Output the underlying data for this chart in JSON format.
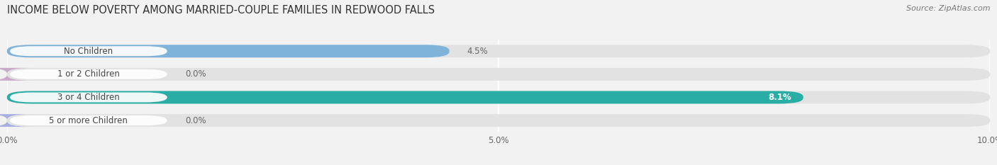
{
  "title": "INCOME BELOW POVERTY AMONG MARRIED-COUPLE FAMILIES IN REDWOOD FALLS",
  "source": "Source: ZipAtlas.com",
  "categories": [
    "No Children",
    "1 or 2 Children",
    "3 or 4 Children",
    "5 or more Children"
  ],
  "values": [
    4.5,
    0.0,
    8.1,
    0.0
  ],
  "bar_colors": [
    "#7fb3d9",
    "#c9a8c8",
    "#2aada5",
    "#a8aedd"
  ],
  "xlim": [
    0,
    10
  ],
  "xticks": [
    0,
    5.0,
    10.0
  ],
  "xticklabels": [
    "0.0%",
    "5.0%",
    "10.0%"
  ],
  "background_color": "#f2f2f2",
  "bar_bg_color": "#e2e2e2",
  "label_box_color": "#ffffff",
  "title_fontsize": 10.5,
  "label_fontsize": 8.5,
  "value_fontsize": 8.5,
  "value_inside_color": "#ffffff",
  "value_outside_color": "#666666"
}
